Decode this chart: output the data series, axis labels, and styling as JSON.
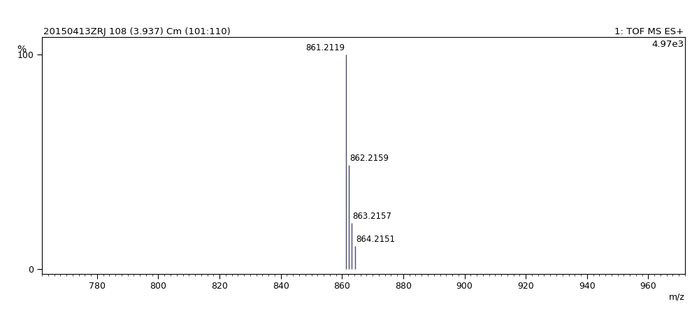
{
  "title_left": "20150413ZRJ 108 (3.937) Cm (101:110)",
  "title_right_line1": "1: TOF MS ES+",
  "title_right_line2": "4.97e3",
  "xlabel": "m/z",
  "ylabel": "%",
  "xlim": [
    762,
    972
  ],
  "ylim": [
    -2,
    108
  ],
  "xticks": [
    780,
    800,
    820,
    840,
    860,
    880,
    900,
    920,
    940,
    960
  ],
  "ytick_positions": [
    0,
    100
  ],
  "ytick_labels": [
    "0",
    "100"
  ],
  "peaks": [
    {
      "mz": 861.2119,
      "intensity": 100.0,
      "label": "861.2119",
      "label_side": "left"
    },
    {
      "mz": 862.2159,
      "intensity": 48.5,
      "label": "862.2159",
      "label_side": "right"
    },
    {
      "mz": 863.2157,
      "intensity": 21.5,
      "label": "863.2157",
      "label_side": "right"
    },
    {
      "mz": 864.2151,
      "intensity": 11.0,
      "label": "864.2151",
      "label_side": "right"
    }
  ],
  "peak_color": "#4a4a6a",
  "background_color": "#ffffff",
  "border_color": "#000000",
  "title_fontsize": 9.5,
  "label_fontsize": 8.5,
  "axis_fontsize": 9,
  "tick_fontsize": 9
}
